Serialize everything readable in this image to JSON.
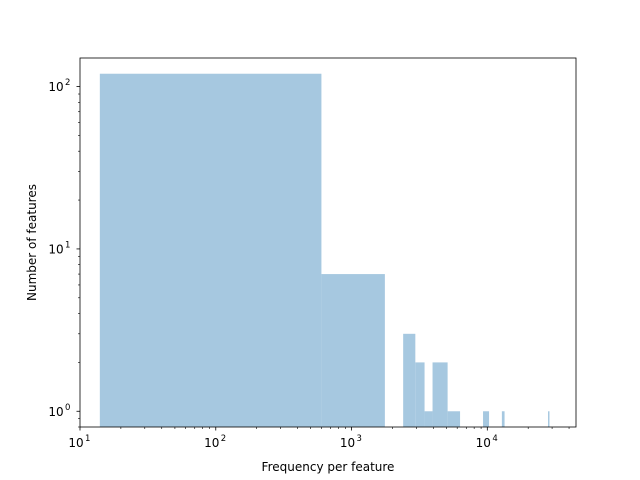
{
  "chart_data": {
    "type": "bar",
    "title": "",
    "xlabel": "Frequency per feature",
    "ylabel": "Number of features",
    "xscale": "log",
    "yscale": "log",
    "xlim": [
      10,
      45000
    ],
    "ylim": [
      0.8,
      150
    ],
    "grid": false,
    "bar_color": "#a6c8e0",
    "x_ticks": [
      {
        "value": 10,
        "base": "10",
        "exp": "1"
      },
      {
        "value": 100,
        "base": "10",
        "exp": "2"
      },
      {
        "value": 1000,
        "base": "10",
        "exp": "3"
      },
      {
        "value": 10000,
        "base": "10",
        "exp": "4"
      }
    ],
    "y_ticks": [
      {
        "value": 1,
        "base": "10",
        "exp": "0"
      },
      {
        "value": 10,
        "base": "10",
        "exp": "1"
      },
      {
        "value": 100,
        "base": "10",
        "exp": "2"
      }
    ],
    "bins": [
      {
        "x0": 14,
        "x1": 600,
        "count": 120
      },
      {
        "x0": 600,
        "x1": 1760,
        "count": 7
      },
      {
        "x0": 2400,
        "x1": 2950,
        "count": 3
      },
      {
        "x0": 2950,
        "x1": 3450,
        "count": 2
      },
      {
        "x0": 3450,
        "x1": 3950,
        "count": 1
      },
      {
        "x0": 3950,
        "x1": 5100,
        "count": 2
      },
      {
        "x0": 5100,
        "x1": 6300,
        "count": 1
      },
      {
        "x0": 9300,
        "x1": 10300,
        "count": 1
      },
      {
        "x0": 12800,
        "x1": 13400,
        "count": 1
      },
      {
        "x0": 28000,
        "x1": 28700,
        "count": 1
      }
    ]
  }
}
